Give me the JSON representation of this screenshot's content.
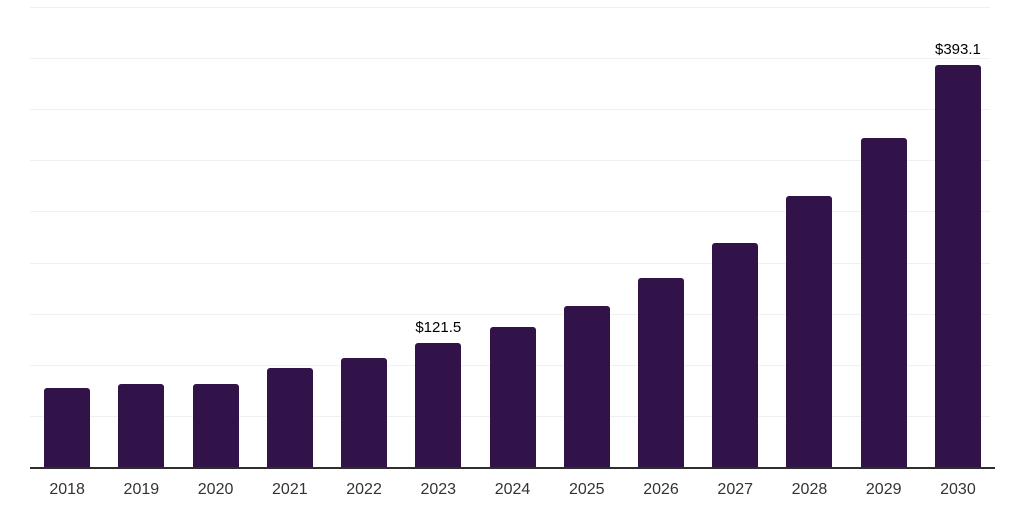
{
  "chart": {
    "background_color": "#ffffff",
    "bar_color": "#321349",
    "gridline_color": "#f0f0f2",
    "axis_line_color": "#2e2e2e",
    "tick_label_color": "#333333",
    "value_label_color": "#000000"
  },
  "chart_data": {
    "type": "bar",
    "title": "",
    "xlabel": "",
    "ylabel": "",
    "categories": [
      "2018",
      "2019",
      "2020",
      "2021",
      "2022",
      "2023",
      "2024",
      "2025",
      "2026",
      "2027",
      "2028",
      "2029",
      "2030"
    ],
    "values": [
      77.3,
      81.2,
      81.2,
      96.8,
      106.6,
      121.5,
      137.0,
      157.5,
      184.9,
      219.1,
      265.1,
      321.9,
      393.1
    ],
    "value_labels": {
      "2023": "$121.5",
      "2030": "$393.1"
    },
    "ylim": [
      0,
      450
    ],
    "gridlines": "horizontal, 10 lines, unlabeled y-axis",
    "legend": "none",
    "bar_corner": "rounded-top"
  }
}
